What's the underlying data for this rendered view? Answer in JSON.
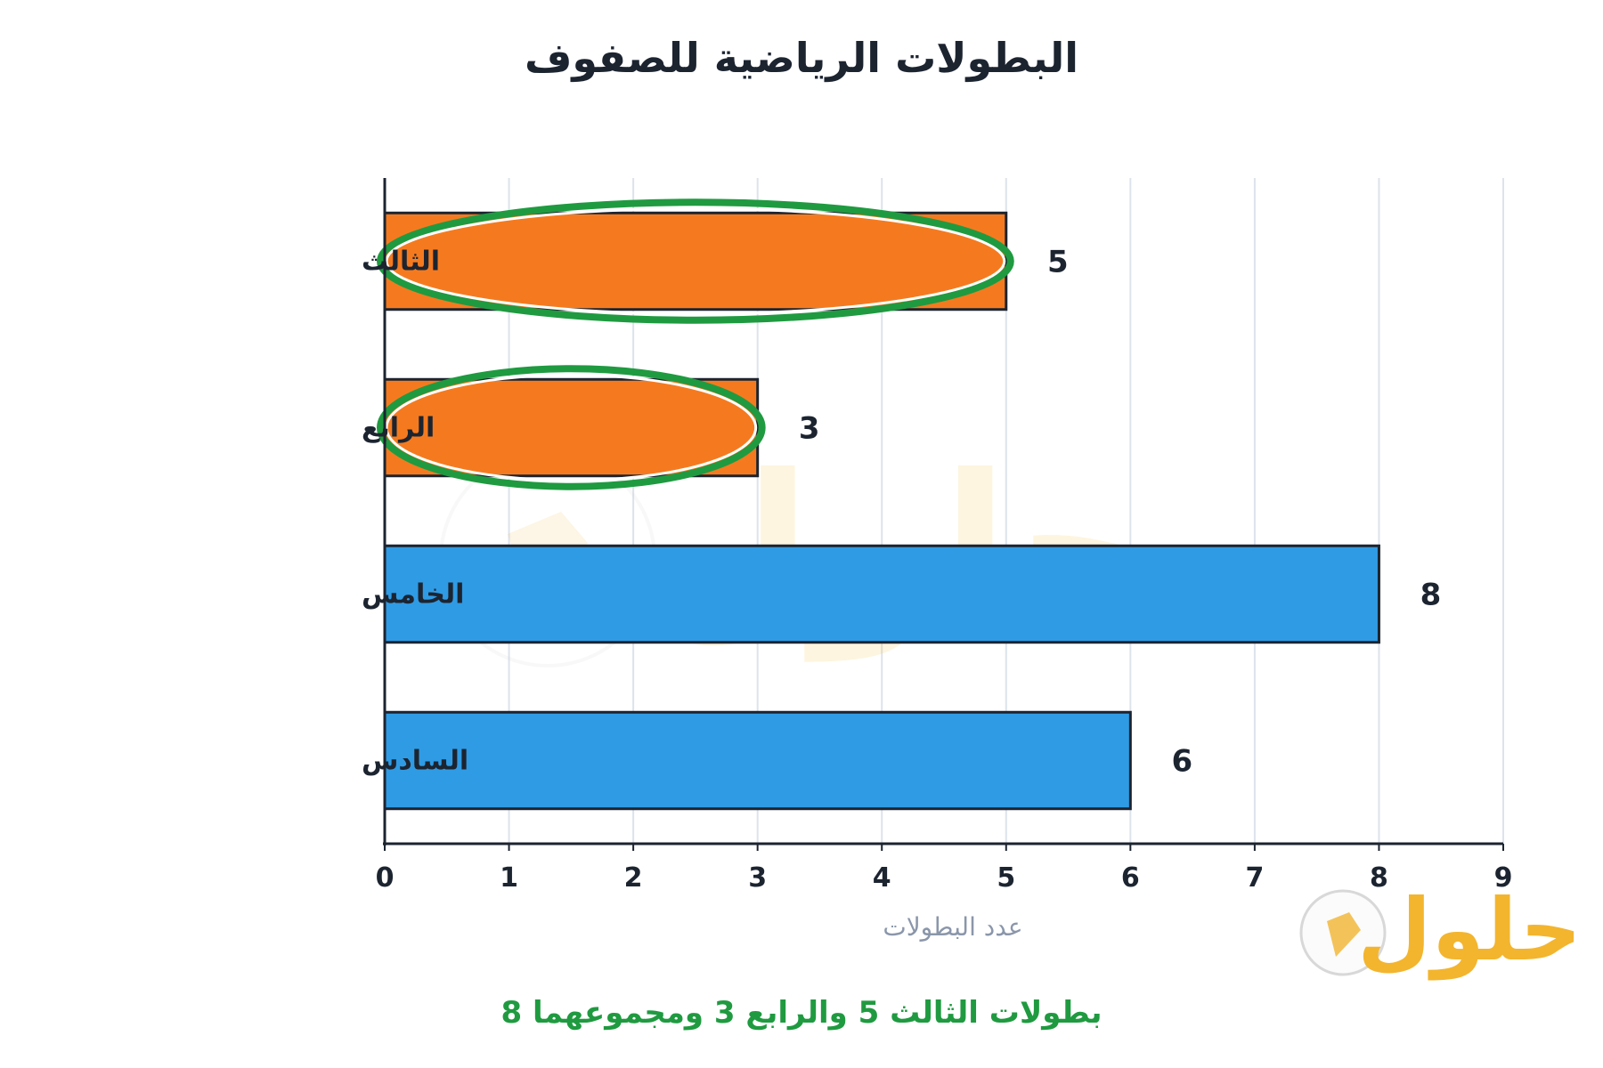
{
  "chart_data": {
    "type": "bar",
    "orientation": "horizontal",
    "title": "البطولات الرياضية للصفوف",
    "xlabel": "عدد البطولات",
    "ylabel": "",
    "categories": [
      "الثالث",
      "الرابع",
      "الخامس",
      "السادس"
    ],
    "values": [
      5,
      3,
      8,
      6
    ],
    "bar_colors": [
      "#f57a1f",
      "#f57a1f",
      "#2f9be4",
      "#2f9be4"
    ],
    "highlighted_categories": [
      "الثالث",
      "الرابع"
    ],
    "highlight_color": "#1f9a40",
    "xlim": [
      0,
      9
    ],
    "xticks": [
      0,
      1,
      2,
      3,
      4,
      5,
      6,
      7,
      8,
      9
    ],
    "grid": "vertical",
    "legend": "none",
    "caption": "بطولات الثالث 5 والرابع 3 ومجموعهما 8"
  },
  "watermark": {
    "text": "حلول",
    "icon": "book-icon"
  }
}
